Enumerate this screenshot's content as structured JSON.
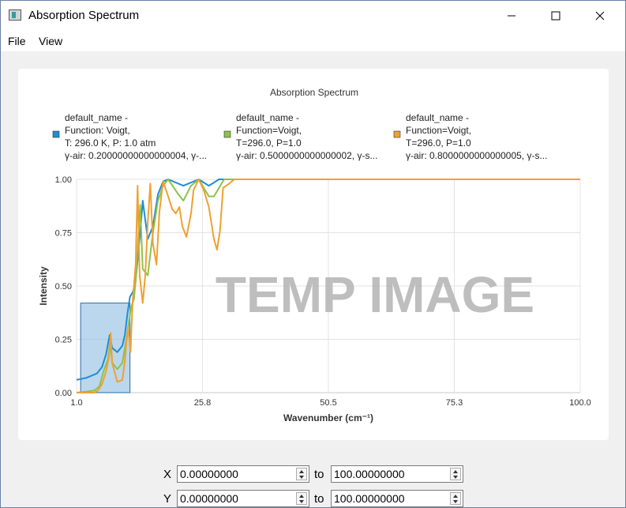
{
  "window": {
    "title": "Absorption Spectrum"
  },
  "menubar": {
    "items": [
      "File",
      "View"
    ]
  },
  "chart_data": {
    "type": "line",
    "title": "Absorption Spectrum",
    "xlabel": "Wavenumber (cm⁻¹)",
    "ylabel": "Intensity",
    "xlim": [
      1.0,
      100.0
    ],
    "ylim": [
      0.0,
      1.0
    ],
    "xticks": [
      "1.0",
      "25.8",
      "50.5",
      "75.3",
      "100.0"
    ],
    "yticks": [
      "0.00",
      "0.25",
      "0.50",
      "0.75",
      "1.00"
    ],
    "grid": true,
    "legend_position": "top",
    "watermark": "TEMP IMAGE",
    "selection": {
      "x": [
        1.8,
        11.5
      ],
      "y": [
        0.0,
        0.42
      ],
      "color": "#8dbde2"
    },
    "series": [
      {
        "name": "default_name -\nFunction: Voigt,\nT: 296.0 K, P: 1.0 atm\nγ-air: 0.20000000000000004, γ-...",
        "legend_lines": [
          "default_name -",
          "Function: Voigt,",
          "T: 296.0 K, P: 1.0 atm",
          "γ-air: 0.20000000000000004, γ-..."
        ],
        "color": "#1f8dd6",
        "points": [
          [
            1,
            0.06
          ],
          [
            3,
            0.07
          ],
          [
            5,
            0.09
          ],
          [
            6,
            0.12
          ],
          [
            6.8,
            0.18
          ],
          [
            7.5,
            0.27
          ],
          [
            8,
            0.21
          ],
          [
            9,
            0.19
          ],
          [
            10,
            0.22
          ],
          [
            10.5,
            0.27
          ],
          [
            11,
            0.37
          ],
          [
            11.5,
            0.45
          ],
          [
            12,
            0.47
          ],
          [
            12.5,
            0.5
          ],
          [
            13,
            0.62
          ],
          [
            13.5,
            0.75
          ],
          [
            14,
            0.9
          ],
          [
            15,
            0.72
          ],
          [
            16,
            0.78
          ],
          [
            17,
            0.93
          ],
          [
            18,
            0.99
          ],
          [
            19,
            1.0
          ],
          [
            22,
            0.97
          ],
          [
            25,
            1.0
          ],
          [
            27,
            0.97
          ],
          [
            29,
            1.0
          ],
          [
            100,
            1.0
          ]
        ]
      },
      {
        "name": "default_name -\nFunction=Voigt,\nT=296.0, P=1.0\nγ-air: 0.5000000000000002, γ-s...",
        "legend_lines": [
          "default_name -",
          "Function=Voigt,",
          "T=296.0, P=1.0",
          "γ-air: 0.5000000000000002, γ-s..."
        ],
        "color": "#8bc34a",
        "points": [
          [
            1,
            0.0
          ],
          [
            3,
            0.005
          ],
          [
            4.5,
            0.01
          ],
          [
            5.5,
            0.03
          ],
          [
            6.3,
            0.1
          ],
          [
            7.2,
            0.16
          ],
          [
            7.6,
            0.24
          ],
          [
            8,
            0.14
          ],
          [
            9,
            0.11
          ],
          [
            10,
            0.14
          ],
          [
            10.5,
            0.21
          ],
          [
            11,
            0.28
          ],
          [
            11.7,
            0.4
          ],
          [
            12.3,
            0.44
          ],
          [
            12.7,
            0.55
          ],
          [
            13.5,
            0.88
          ],
          [
            14,
            0.58
          ],
          [
            15,
            0.55
          ],
          [
            16,
            0.75
          ],
          [
            17,
            0.9
          ],
          [
            18,
            0.97
          ],
          [
            19,
            1.0
          ],
          [
            21,
            0.93
          ],
          [
            22,
            0.9
          ],
          [
            23.5,
            0.97
          ],
          [
            25,
            1.0
          ],
          [
            27,
            0.92
          ],
          [
            28,
            0.92
          ],
          [
            30,
            1.0
          ],
          [
            100,
            1.0
          ]
        ]
      },
      {
        "name": "default_name -\nFunction=Voigt,\nT=296.0, P=1.0\nγ-air: 0.8000000000000005, γ-s...",
        "legend_lines": [
          "default_name -",
          "Function=Voigt,",
          "T=296.0, P=1.0",
          "γ-air: 0.8000000000000005, γ-s..."
        ],
        "color": "#f0a030",
        "points": [
          [
            1,
            0.0
          ],
          [
            3,
            0.0
          ],
          [
            4.5,
            0.0
          ],
          [
            5.2,
            0.01
          ],
          [
            6,
            0.04
          ],
          [
            6.8,
            0.1
          ],
          [
            7.4,
            0.17
          ],
          [
            7.7,
            0.28
          ],
          [
            8,
            0.14
          ],
          [
            9,
            0.05
          ],
          [
            10,
            0.06
          ],
          [
            10.5,
            0.15
          ],
          [
            10.8,
            0.24
          ],
          [
            11.2,
            0.3
          ],
          [
            11.6,
            0.19
          ],
          [
            12,
            0.42
          ],
          [
            12.6,
            0.6
          ],
          [
            13,
            0.97
          ],
          [
            13.4,
            0.55
          ],
          [
            14,
            0.42
          ],
          [
            14.5,
            0.55
          ],
          [
            15,
            0.8
          ],
          [
            15.5,
            0.98
          ],
          [
            16,
            0.7
          ],
          [
            16.7,
            0.6
          ],
          [
            17.3,
            0.85
          ],
          [
            18,
            0.99
          ],
          [
            19,
            0.92
          ],
          [
            19.8,
            0.86
          ],
          [
            20.5,
            0.84
          ],
          [
            21.2,
            0.87
          ],
          [
            21.8,
            0.78
          ],
          [
            22.6,
            0.73
          ],
          [
            23.5,
            0.84
          ],
          [
            24,
            0.95
          ],
          [
            25,
            1.0
          ],
          [
            26,
            0.95
          ],
          [
            27,
            0.87
          ],
          [
            28,
            0.72
          ],
          [
            28.6,
            0.67
          ],
          [
            29.2,
            0.76
          ],
          [
            29.8,
            0.96
          ],
          [
            31,
            0.98
          ],
          [
            32,
            1.0
          ],
          [
            100,
            1.0
          ]
        ]
      }
    ]
  },
  "range_controls": {
    "x_label": "X",
    "y_label": "Y",
    "to_label": "to",
    "x_min": "0.00000000",
    "x_max": "100.00000000",
    "y_min": "0.00000000",
    "y_max": "100.00000000"
  }
}
